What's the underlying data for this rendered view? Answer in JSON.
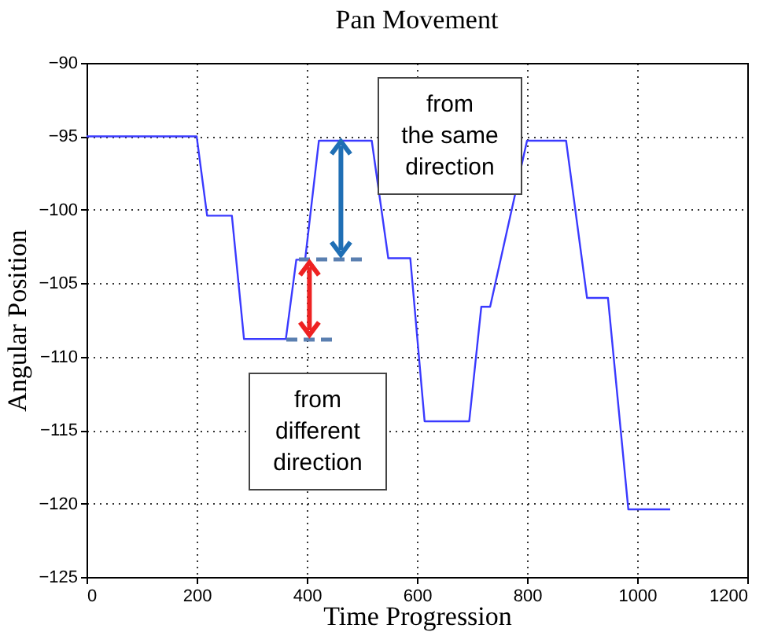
{
  "chart_data": {
    "type": "line",
    "title": "Pan Movement",
    "xlabel": "Time Progression",
    "ylabel": "Angular Position",
    "x": [
      0,
      200,
      219,
      264,
      286,
      362,
      381,
      397,
      422,
      518,
      548,
      557,
      588,
      614,
      695,
      717,
      733,
      800,
      871,
      909,
      947,
      984,
      1060
    ],
    "series": [
      {
        "color": "#3a3aff",
        "values": [
          -95,
          -95,
          -100.4,
          -100.4,
          -108.8,
          -108.8,
          -103.4,
          -103.4,
          -95.3,
          -95.3,
          -103.3,
          -103.3,
          -103.3,
          -114.4,
          -114.4,
          -106.6,
          -106.6,
          -95.3,
          -95.3,
          -106,
          -106,
          -120.4,
          -120.4
        ]
      }
    ],
    "xlim": [
      0,
      1200
    ],
    "xticks": [
      0,
      200,
      400,
      600,
      800,
      1000,
      1200
    ],
    "ylim": [
      -125,
      -90
    ],
    "yticks": [
      -125,
      -120,
      -115,
      -110,
      -105,
      -100,
      -95,
      -90
    ],
    "grid": true,
    "marker": "none",
    "line_style": "solid",
    "annotations": [
      "from\nthe same\ndirection",
      "from\ndifferent\ndirection"
    ]
  }
}
